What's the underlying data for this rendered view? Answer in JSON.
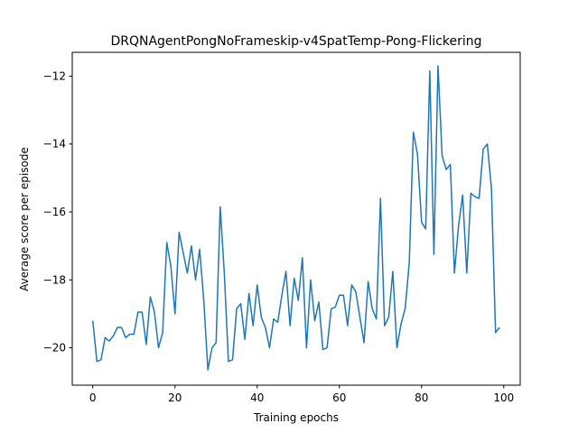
{
  "chart_data": {
    "type": "line",
    "title": "DRQNAgentPongNoFrameskip-v4SpatTemp-Pong-Flickering",
    "xlabel": "Training epochs",
    "ylabel": "Average score per episode",
    "xlim": [
      -5,
      104
    ],
    "ylim": [
      -21.1,
      -11.3
    ],
    "xticks": [
      0,
      20,
      40,
      60,
      80,
      100
    ],
    "yticks": [
      -20,
      -18,
      -16,
      -14,
      -12
    ],
    "xtick_labels": [
      "0",
      "20",
      "40",
      "60",
      "80",
      "100"
    ],
    "ytick_labels": [
      "−20",
      "−18",
      "−16",
      "−14",
      "−12"
    ],
    "grid": false,
    "line_color": "#1f77b4",
    "series": [
      {
        "x": [
          0,
          1,
          2,
          3,
          4,
          5,
          6,
          7,
          8,
          9,
          10,
          11,
          12,
          13,
          14,
          15,
          16,
          17,
          18,
          19,
          20,
          21,
          22,
          23,
          24,
          25,
          26,
          27,
          28,
          29,
          30,
          31,
          32,
          33,
          34,
          35,
          36,
          37,
          38,
          39,
          40,
          41,
          42,
          43,
          44,
          45,
          46,
          47,
          48,
          49,
          50,
          51,
          52,
          53,
          54,
          55,
          56,
          57,
          58,
          59,
          60,
          61,
          62,
          63,
          64,
          65,
          66,
          67,
          68,
          69,
          70,
          71,
          72,
          73,
          74,
          75,
          76,
          77,
          78,
          79,
          80,
          81,
          82,
          83,
          84,
          85,
          86,
          87,
          88,
          89,
          90,
          91,
          92,
          93,
          94,
          95,
          96,
          97,
          98,
          99
        ],
        "values": [
          -19.2,
          -20.4,
          -20.35,
          -19.7,
          -19.8,
          -19.65,
          -19.4,
          -19.4,
          -19.7,
          -19.6,
          -19.6,
          -18.95,
          -18.95,
          -19.9,
          -18.5,
          -18.95,
          -20.0,
          -19.55,
          -16.9,
          -17.6,
          -19.0,
          -16.6,
          -17.2,
          -17.8,
          -17.0,
          -18.0,
          -17.1,
          -18.6,
          -20.65,
          -20.0,
          -19.85,
          -15.85,
          -17.8,
          -20.4,
          -20.35,
          -18.85,
          -18.7,
          -19.75,
          -18.4,
          -19.35,
          -18.15,
          -19.1,
          -19.4,
          -20.0,
          -19.15,
          -19.25,
          -18.45,
          -17.75,
          -19.35,
          -17.95,
          -18.6,
          -17.35,
          -20.0,
          -18.0,
          -19.2,
          -18.65,
          -20.05,
          -20.0,
          -18.85,
          -18.8,
          -18.45,
          -18.45,
          -19.35,
          -18.15,
          -18.35,
          -19.1,
          -19.85,
          -18.05,
          -18.85,
          -19.15,
          -15.6,
          -19.35,
          -19.1,
          -17.75,
          -20.0,
          -19.3,
          -18.85,
          -17.5,
          -13.65,
          -14.3,
          -16.3,
          -16.5,
          -11.85,
          -17.25,
          -11.7,
          -14.35,
          -14.75,
          -14.6,
          -17.8,
          -16.4,
          -15.5,
          -17.8,
          -15.45,
          -15.55,
          -15.6,
          -14.15,
          -14.0,
          -15.3,
          -19.55,
          -19.4
        ]
      }
    ]
  }
}
